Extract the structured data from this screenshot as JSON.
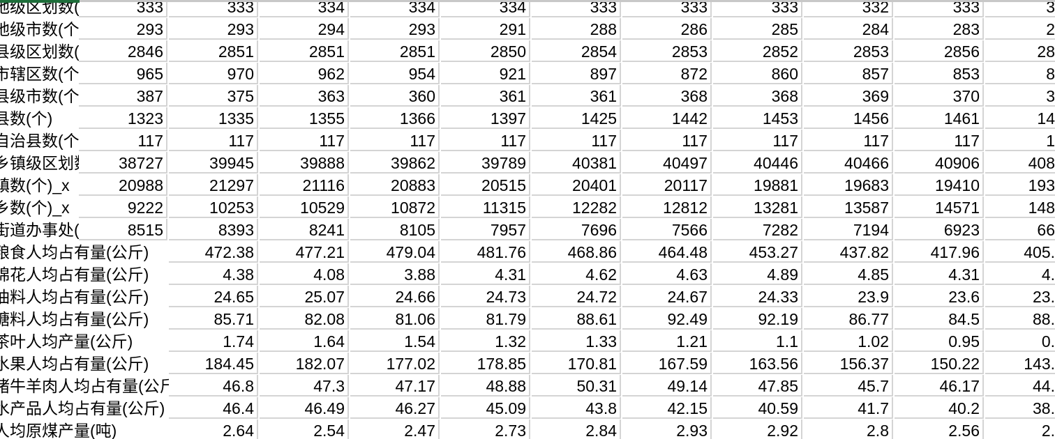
{
  "spreadsheet": {
    "accent_color": "#1e6e3a",
    "rows": [
      {
        "label": "地级区划数(",
        "values": [
          "333",
          "333",
          "334",
          "334",
          "334",
          "333",
          "333",
          "333",
          "332",
          "333",
          "3"
        ]
      },
      {
        "label": "地级市数(个",
        "values": [
          "293",
          "293",
          "294",
          "293",
          "291",
          "288",
          "286",
          "285",
          "284",
          "283",
          "2"
        ]
      },
      {
        "label": "县级区划数(",
        "values": [
          "2846",
          "2851",
          "2851",
          "2851",
          "2850",
          "2854",
          "2853",
          "2852",
          "2853",
          "2856",
          "28"
        ]
      },
      {
        "label": "市辖区数(个",
        "values": [
          "965",
          "970",
          "962",
          "954",
          "921",
          "897",
          "872",
          "860",
          "857",
          "853",
          "8"
        ]
      },
      {
        "label": "县级市数(个",
        "values": [
          "387",
          "375",
          "363",
          "360",
          "361",
          "361",
          "368",
          "368",
          "369",
          "370",
          "3"
        ]
      },
      {
        "label": "县数(个)",
        "values": [
          "1323",
          "1335",
          "1355",
          "1366",
          "1397",
          "1425",
          "1442",
          "1453",
          "1456",
          "1461",
          "14"
        ]
      },
      {
        "label": "自治县数(个",
        "values": [
          "117",
          "117",
          "117",
          "117",
          "117",
          "117",
          "117",
          "117",
          "117",
          "117",
          "1"
        ]
      },
      {
        "label": "乡镇级区划数",
        "values": [
          "38727",
          "39945",
          "39888",
          "39862",
          "39789",
          "40381",
          "40497",
          "40446",
          "40466",
          "40906",
          "408"
        ]
      },
      {
        "label": "镇数(个)_x",
        "values": [
          "20988",
          "21297",
          "21116",
          "20883",
          "20515",
          "20401",
          "20117",
          "19881",
          "19683",
          "19410",
          "193"
        ]
      },
      {
        "label": "乡数(个)_x",
        "values": [
          "9222",
          "10253",
          "10529",
          "10872",
          "11315",
          "12282",
          "12812",
          "13281",
          "13587",
          "14571",
          "148"
        ]
      },
      {
        "label": "街道办事处(",
        "values": [
          "8515",
          "8393",
          "8241",
          "8105",
          "7957",
          "7696",
          "7566",
          "7282",
          "7194",
          "6923",
          "66"
        ]
      },
      {
        "label": "粮食人均占有量(公斤)",
        "values": [
          "",
          "472.38",
          "477.21",
          "479.04",
          "481.76",
          "468.86",
          "464.48",
          "453.27",
          "437.82",
          "417.96",
          "405."
        ]
      },
      {
        "label": "棉花人均占有量(公斤)",
        "values": [
          "",
          "4.38",
          "4.08",
          "3.88",
          "4.31",
          "4.62",
          "4.63",
          "4.89",
          "4.85",
          "4.31",
          "4."
        ]
      },
      {
        "label": "油料人均占有量(公斤)",
        "values": [
          "",
          "24.65",
          "25.07",
          "24.66",
          "24.73",
          "24.72",
          "24.67",
          "24.33",
          "23.9",
          "23.6",
          "23."
        ]
      },
      {
        "label": "糖料人均占有量(公斤)",
        "values": [
          "",
          "85.71",
          "82.08",
          "81.06",
          "81.79",
          "88.61",
          "92.49",
          "92.19",
          "86.77",
          "84.5",
          "88."
        ]
      },
      {
        "label": "茶叶人均产量(公斤)",
        "values": [
          "",
          "1.74",
          "1.64",
          "1.54",
          "1.32",
          "1.33",
          "1.21",
          "1.1",
          "1.02",
          "0.95",
          "0."
        ]
      },
      {
        "label": "水果人均占有量(公斤)",
        "values": [
          "",
          "184.45",
          "182.07",
          "177.02",
          "178.85",
          "170.81",
          "167.59",
          "163.56",
          "156.37",
          "150.22",
          "143."
        ]
      },
      {
        "label": "猪牛羊肉人均占有量(公斤)",
        "values": [
          "",
          "46.8",
          "47.3",
          "47.17",
          "48.88",
          "50.31",
          "49.14",
          "47.85",
          "45.7",
          "46.17",
          "44."
        ]
      },
      {
        "label": "水产品人均占有量(公斤)",
        "values": [
          "",
          "46.4",
          "46.49",
          "46.27",
          "45.09",
          "43.8",
          "42.15",
          "40.59",
          "41.7",
          "40.2",
          "38."
        ]
      },
      {
        "label": "人均原煤产量(吨)",
        "values": [
          "",
          "2.64",
          "2.54",
          "2.47",
          "2.73",
          "2.84",
          "2.93",
          "2.92",
          "2.8",
          "2.56",
          "2."
        ]
      }
    ]
  }
}
